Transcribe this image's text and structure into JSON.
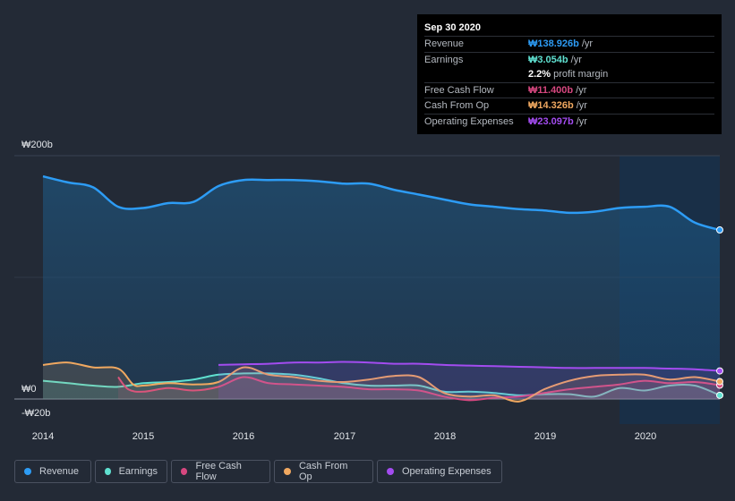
{
  "tooltip": {
    "date": "Sep 30 2020",
    "rows": [
      {
        "label": "Revenue",
        "value": "₩138.926b",
        "unit": "/yr",
        "color": "#2d9cf5"
      },
      {
        "label": "Earnings",
        "value": "₩3.054b",
        "unit": "/yr",
        "color": "#5fe0d0"
      },
      {
        "label": "",
        "value": "2.2%",
        "unit": "profit margin",
        "color": "#ffffff"
      },
      {
        "label": "Free Cash Flow",
        "value": "₩11.400b",
        "unit": "/yr",
        "color": "#d6477f"
      },
      {
        "label": "Cash From Op",
        "value": "₩14.326b",
        "unit": "/yr",
        "color": "#f0a860"
      },
      {
        "label": "Operating Expenses",
        "value": "₩23.097b",
        "unit": "/yr",
        "color": "#a34cf0"
      }
    ]
  },
  "legend": [
    {
      "label": "Revenue",
      "color": "#2d9cf5"
    },
    {
      "label": "Earnings",
      "color": "#5fe0d0"
    },
    {
      "label": "Free Cash Flow",
      "color": "#d6477f"
    },
    {
      "label": "Cash From Op",
      "color": "#f0a860"
    },
    {
      "label": "Operating Expenses",
      "color": "#a34cf0"
    }
  ],
  "chart_data": {
    "type": "area",
    "title": "",
    "xlabel": "",
    "ylabel": "",
    "unit": "KRW billions",
    "ylim": [
      -20,
      200
    ],
    "xlim": [
      2014.0,
      2020.75
    ],
    "y_tick_labels": [
      "₩200b",
      "₩0",
      "-₩20b"
    ],
    "x_tick_labels": [
      "2014",
      "2015",
      "2016",
      "2017",
      "2018",
      "2019",
      "2020"
    ],
    "highlight_from": 2019.75,
    "series": [
      {
        "name": "Revenue",
        "color": "#2d9cf5",
        "points": [
          [
            2014.0,
            183
          ],
          [
            2014.25,
            178
          ],
          [
            2014.5,
            174
          ],
          [
            2014.75,
            158
          ],
          [
            2015.0,
            157
          ],
          [
            2015.25,
            161
          ],
          [
            2015.5,
            162
          ],
          [
            2015.75,
            175
          ],
          [
            2016.0,
            180
          ],
          [
            2016.25,
            180
          ],
          [
            2016.5,
            180
          ],
          [
            2016.75,
            179
          ],
          [
            2017.0,
            177
          ],
          [
            2017.25,
            177
          ],
          [
            2017.5,
            172
          ],
          [
            2017.75,
            168
          ],
          [
            2018.0,
            164
          ],
          [
            2018.25,
            160
          ],
          [
            2018.5,
            158
          ],
          [
            2018.75,
            156
          ],
          [
            2019.0,
            155
          ],
          [
            2019.25,
            153
          ],
          [
            2019.5,
            154
          ],
          [
            2019.75,
            157
          ],
          [
            2020.0,
            158
          ],
          [
            2020.25,
            158
          ],
          [
            2020.5,
            145
          ],
          [
            2020.75,
            138.926
          ]
        ]
      },
      {
        "name": "Earnings",
        "color": "#5fe0d0",
        "points": [
          [
            2014.0,
            15
          ],
          [
            2014.25,
            13
          ],
          [
            2014.5,
            11
          ],
          [
            2014.75,
            10
          ],
          [
            2015.0,
            13
          ],
          [
            2015.25,
            14
          ],
          [
            2015.5,
            16
          ],
          [
            2015.75,
            20
          ],
          [
            2016.0,
            21
          ],
          [
            2016.25,
            21
          ],
          [
            2016.5,
            20
          ],
          [
            2016.75,
            17
          ],
          [
            2017.0,
            13
          ],
          [
            2017.25,
            11
          ],
          [
            2017.5,
            11
          ],
          [
            2017.75,
            11
          ],
          [
            2018.0,
            6
          ],
          [
            2018.25,
            6
          ],
          [
            2018.5,
            5
          ],
          [
            2018.75,
            3
          ],
          [
            2019.0,
            4
          ],
          [
            2019.25,
            4
          ],
          [
            2019.5,
            2
          ],
          [
            2019.75,
            9
          ],
          [
            2020.0,
            7
          ],
          [
            2020.25,
            11
          ],
          [
            2020.5,
            11
          ],
          [
            2020.75,
            3.054
          ]
        ]
      },
      {
        "name": "Free Cash Flow",
        "color": "#d6477f",
        "points": [
          [
            2014.75,
            18
          ],
          [
            2014.85,
            8
          ],
          [
            2015.0,
            6
          ],
          [
            2015.25,
            9
          ],
          [
            2015.5,
            7
          ],
          [
            2015.75,
            10
          ],
          [
            2016.0,
            18
          ],
          [
            2016.25,
            13
          ],
          [
            2016.5,
            12
          ],
          [
            2016.75,
            11
          ],
          [
            2017.0,
            10
          ],
          [
            2017.25,
            8
          ],
          [
            2017.5,
            8
          ],
          [
            2017.75,
            7
          ],
          [
            2018.0,
            2
          ],
          [
            2018.25,
            -1
          ],
          [
            2018.5,
            1
          ],
          [
            2018.75,
            2
          ],
          [
            2019.0,
            5
          ],
          [
            2019.25,
            8
          ],
          [
            2019.5,
            10
          ],
          [
            2019.75,
            12
          ],
          [
            2020.0,
            15
          ],
          [
            2020.25,
            13
          ],
          [
            2020.5,
            14
          ],
          [
            2020.75,
            11.4
          ]
        ]
      },
      {
        "name": "Cash From Op",
        "color": "#f0a860",
        "points": [
          [
            2014.0,
            28
          ],
          [
            2014.25,
            30
          ],
          [
            2014.5,
            26
          ],
          [
            2014.75,
            25
          ],
          [
            2014.9,
            12
          ],
          [
            2015.0,
            11
          ],
          [
            2015.25,
            13
          ],
          [
            2015.5,
            12
          ],
          [
            2015.75,
            14
          ],
          [
            2016.0,
            26
          ],
          [
            2016.25,
            20
          ],
          [
            2016.5,
            18
          ],
          [
            2016.75,
            15
          ],
          [
            2017.0,
            14
          ],
          [
            2017.25,
            16
          ],
          [
            2017.5,
            19
          ],
          [
            2017.75,
            18
          ],
          [
            2018.0,
            5
          ],
          [
            2018.25,
            2
          ],
          [
            2018.5,
            3
          ],
          [
            2018.75,
            -2
          ],
          [
            2019.0,
            8
          ],
          [
            2019.25,
            15
          ],
          [
            2019.5,
            19
          ],
          [
            2019.75,
            20
          ],
          [
            2020.0,
            20
          ],
          [
            2020.25,
            16
          ],
          [
            2020.5,
            18
          ],
          [
            2020.75,
            14.326
          ]
        ]
      },
      {
        "name": "Operating Expenses",
        "color": "#a34cf0",
        "points": [
          [
            2015.75,
            28
          ],
          [
            2016.0,
            28.5
          ],
          [
            2016.25,
            29
          ],
          [
            2016.5,
            30
          ],
          [
            2016.75,
            30
          ],
          [
            2017.0,
            30.5
          ],
          [
            2017.25,
            30
          ],
          [
            2017.5,
            29
          ],
          [
            2017.75,
            29
          ],
          [
            2018.0,
            28
          ],
          [
            2018.25,
            27.5
          ],
          [
            2018.5,
            27
          ],
          [
            2018.75,
            26.5
          ],
          [
            2019.0,
            26
          ],
          [
            2019.25,
            25.5
          ],
          [
            2019.5,
            25.5
          ],
          [
            2019.75,
            25.5
          ],
          [
            2020.0,
            25.5
          ],
          [
            2020.25,
            25
          ],
          [
            2020.5,
            24.5
          ],
          [
            2020.75,
            23.097
          ]
        ]
      }
    ]
  }
}
